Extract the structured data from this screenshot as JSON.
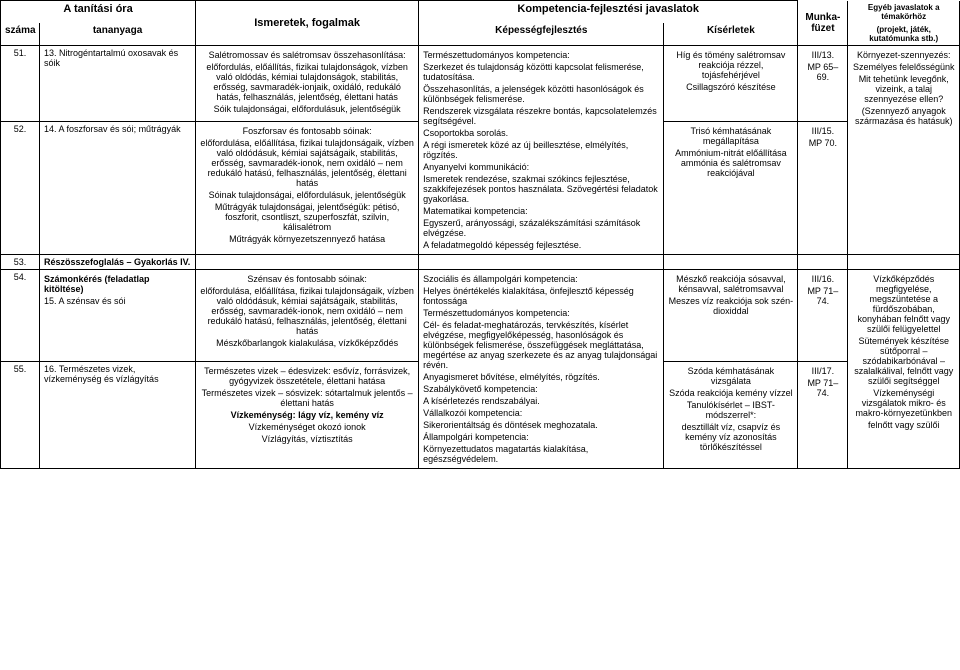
{
  "header": {
    "tanitasi_ora": "A tanítási óra",
    "ismeretek": "Ismeretek, fogalmak",
    "kompetencia": "Kompetencia-fejlesztési javaslatok",
    "egyeb": "Egyéb javaslatok a témakörhöz",
    "szama": "száma",
    "tananyaga": "tananyaga",
    "kepesseg": "Képességfejlesztés",
    "kiserletek": "Kísérletek",
    "munka": "Munka-füzet",
    "egyeb_sub": "(projekt, játék, kutatómunka stb.)"
  },
  "row51": {
    "szama": "51.",
    "tananyag": "13. Nitrogéntartalmú oxosavak és sóik",
    "ismeretek_title": "Salétromossav és salétromsav összehasonlítása:",
    "ismeretek_body": "előfordulás, előállítás, fizikai tulajdonságok, vízben való oldódás, kémiai tulajdonságok, stabilitás, erősség, savmaradék-ionjaik, oxidáló, redukáló hatás, felhasználás, jelentőség, élettani hatás",
    "ismeretek_sub": "Sóik tulajdonságai, előfordulásuk, jelentőségük",
    "kepesseg_1": "Természettudományos kompetencia:",
    "kepesseg_1b": "Szerkezet és tulajdonság közötti kapcsolat felismerése, tudatosítása.",
    "kepesseg_1c": "Összehasonlítás, a jelenségek közötti hasonlóságok és különbségek felismerése.",
    "kepesseg_1d": "Rendszerek vizsgálata részekre bontás, kapcsolat­elemzés segítségével.",
    "kepesseg_1e": "Csoportokba sorolás.",
    "kepesseg_1f": "A régi ismeretek közé az új beillesztése, elmélyítés, rögzítés.",
    "kiserletek_1": "Híg és tömény salétromsav reakciója rézzel, tojásfehérjével",
    "kiserletek_2": "Csillagszóró készítése",
    "munka": "III/13.",
    "munka_mp": "MP 65–69.",
    "egyeb_1": "Környezet-szennyezés:",
    "egyeb_2": "Személyes felelősségünk",
    "egyeb_3": "Mit tehetünk levegőnk, vizeink, a talaj szennyezése ellen?",
    "egyeb_4": "(Szennyező anyagok származása és hatásuk)"
  },
  "row52": {
    "szama": "52.",
    "tananyag": "14. A foszforsav és sói; műtrágyák",
    "ismeretek_title": "Foszforsav és fontosabb sóinak:",
    "ismeretek_body": "előfordulása, előállítása, fizikai tulajdonságaik, vízben való oldódásuk, kémiai sajátságaik, stabilitás, erősség, savmaradék-ionok, nem oxidáló – nem redukáló hatású, felhasználás, jelentőség, élettani hatás",
    "ismeretek_sub": "Sóinak tulajdonságai, előfordulásuk, jelentőségük",
    "ismeretek_mut": "Műtrágyák tulajdonságai, jelentőségük: pétisó, foszforit, csontliszt, szuperfoszfát, szilvin, kálisalétrom",
    "ismeretek_last": "Műtrágyák környezetszennyező hatása",
    "kepesseg_1": "Anyanyelvi kommunikáció:",
    "kepesseg_1b": "Ismeretek rendezése, szakmai szókincs fejlesztése, szakkifejezések pontos használata. Szövegértési feladatok gyakorlása.",
    "kepesseg_2": "Matematikai kompetencia:",
    "kepesseg_2b": "Egyszerű, arányossági, százalékszámítási számítások elvégzése.",
    "kepesseg_2c": "A feladatmegoldó képesség fejlesztése.",
    "kiserletek_1": "Trisó kémhatásának megállapítása",
    "kiserletek_2": "Ammónium-nitrát előállítása ammónia és salétromsav reakciójával",
    "munka": "III/15.",
    "munka_mp": "MP 70."
  },
  "row53": {
    "szama": "53.",
    "tananyag": "Részösszefoglalás – Gyakorlás IV."
  },
  "row54": {
    "szama": "54.",
    "tananyag_1": "Számonkérés (feladatlap kitöltése)",
    "tananyag_2": "15. A szénsav és sói",
    "ismeretek_title": "Szénsav és fontosabb sóinak:",
    "ismeretek_body": "előfordulása, előállítása, fizikai tulajdonságaik, vízben való oldódásuk, kémiai sajátságaik, stabilitás, erősség, savmaradék-ionok, nem oxidáló – nem redukáló hatású, felhasználás, jelentőség, élettani hatás",
    "ismeretek_sub": "Mészkőbarlangok kialakulása, vízkőképződés",
    "kepesseg_1": "Szociális és állampolgári kompetencia:",
    "kepesseg_1b": "Helyes önértékelés kialakítása, önfejlesztő képesség fontossága",
    "kepesseg_2": "Természettudományos kompetencia:",
    "kepesseg_2b": "Cél- és feladat-meghatározás, tervkészítés, kísérlet elvégzése, megfigyelőképesség, hasonlóságok és különbségek felismerése, összefüggések megláttatása, megértése az anyag szerkezete és az anyag tulajdonságai révén.",
    "kepesseg_2c": "Anyagismeret bővítése, elmélyítés, rögzítés.",
    "kiserletek_1": "Mészkő reakciója sósavval, kénsavval, salétromsavval",
    "kiserletek_2": "Meszes víz reakciója sok szén-dioxiddal",
    "munka": "III/16.",
    "munka_mp": "MP 71–74.",
    "egyeb_1": "Vízkőképződés megfigyelése, megszüntetése a fürdőszobában, konyhában felnőtt vagy szülői felügyelettel",
    "egyeb_2": "Sütemények készítése sütőporral – szódabikarbónával – szalalkálival, felnőtt vagy szülői segítséggel"
  },
  "row55": {
    "szama": "55.",
    "tananyag": "16. Természetes vizek, vízkeménység és vízlágyítás",
    "ismeretek_1": "Természetes vizek – édesvizek: esővíz, forrásvizek, gyógyvizek összetétele, élettani hatása",
    "ismeretek_2": "Természetes vizek – sósvizek: sótartalmuk jelentős – élettani hatás",
    "ismeretek_3": "Vízkeménység: lágy víz, kemény víz",
    "ismeretek_4": "Vízkeménységet okozó ionok",
    "ismeretek_5": "Vízlágyítás, víztisztítás",
    "kepesseg_1": "Szabálykövető kompetencia:",
    "kepesseg_1b": "A kísérletezés rendszabályai.",
    "kepesseg_2": "Vállalkozói kompetencia:",
    "kepesseg_2b": "Sikerorientáltság és döntések meghozatala.",
    "kepesseg_3": "Állampolgári kompetencia:",
    "kepesseg_3b": "Környezettudatos magatartás kialakítása, egészségvédelem.",
    "kiserletek_1": "Szóda kémhatásának vizsgálata",
    "kiserletek_2": "Szóda reakciója kemény vízzel",
    "kiserletek_3": "Tanulókísérlet – IBST-módszerrel*:",
    "kiserletek_4": "desztillált víz, csapvíz és kemény víz azonosítás törlőkészítéssel",
    "munka": "III/17.",
    "munka_mp": "MP 71–74.",
    "egyeb": "Vízkeménységi vizsgálatok mikro- és makro-környezetünkben",
    "egyeb_2": "felnőtt vagy szülői"
  }
}
